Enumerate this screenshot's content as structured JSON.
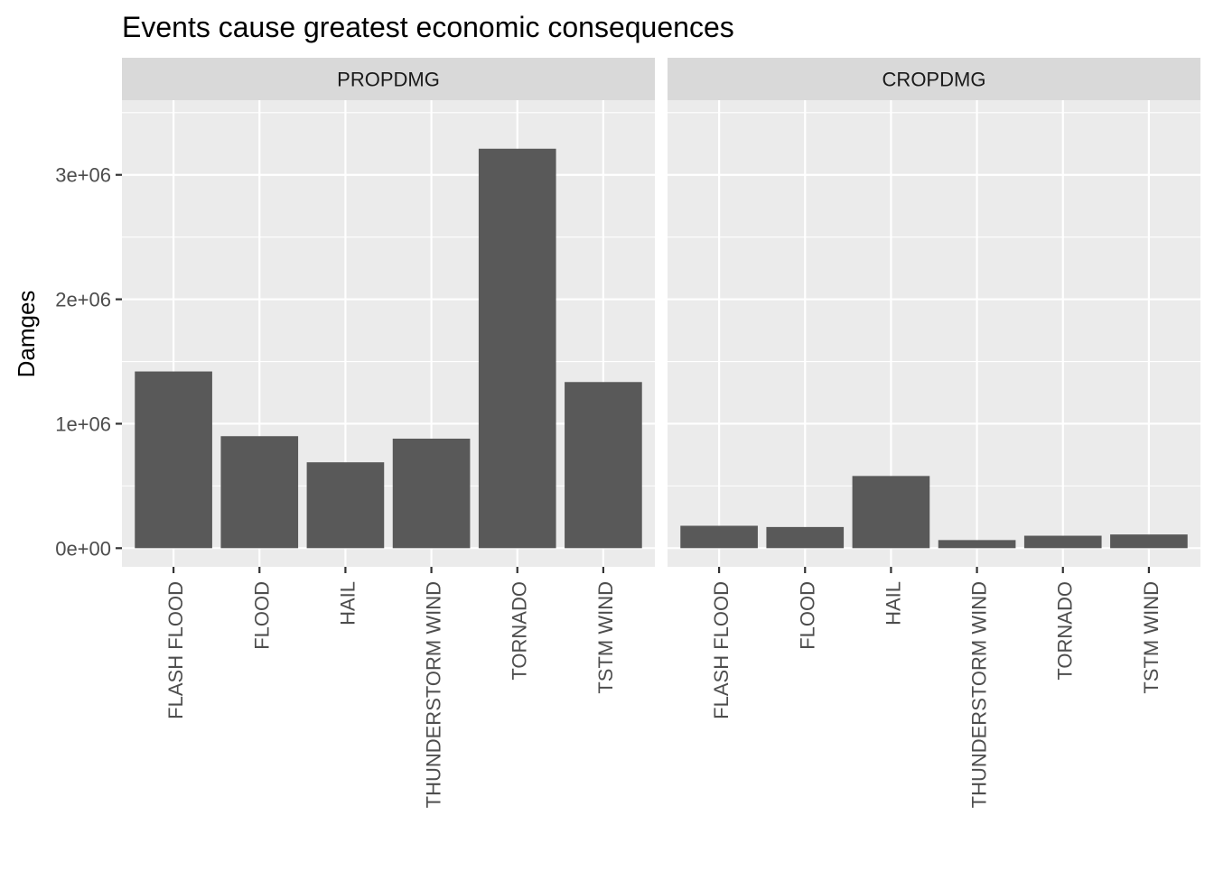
{
  "chart_data": {
    "type": "bar",
    "title": "Events cause greatest economic consequences",
    "xlabel": "",
    "ylabel": "Damges",
    "ylim": [
      -150000,
      3600000
    ],
    "y_ticks": [
      {
        "value": 0,
        "label": "0e+00"
      },
      {
        "value": 1000000,
        "label": "1e+06"
      },
      {
        "value": 2000000,
        "label": "2e+06"
      },
      {
        "value": 3000000,
        "label": "3e+06"
      }
    ],
    "y_minor_ticks": [
      500000,
      1500000,
      2500000,
      3500000
    ],
    "grid": true,
    "categories": [
      "FLASH FLOOD",
      "FLOOD",
      "HAIL",
      "THUNDERSTORM WIND",
      "TORNADO",
      "TSTM WIND"
    ],
    "facets": [
      {
        "label": "PROPDMG",
        "values": [
          1420000,
          900000,
          690000,
          880000,
          3210000,
          1335000
        ]
      },
      {
        "label": "CROPDMG",
        "values": [
          180000,
          170000,
          580000,
          65000,
          100000,
          110000
        ]
      }
    ],
    "colors": {
      "bar": "#595959",
      "panel": "#ebebeb",
      "strip": "#d9d9d9",
      "grid": "#ffffff",
      "text": "#000000",
      "axis_text": "#4d4d4d",
      "strip_text": "#1a1a1a",
      "tick": "#333333"
    }
  }
}
